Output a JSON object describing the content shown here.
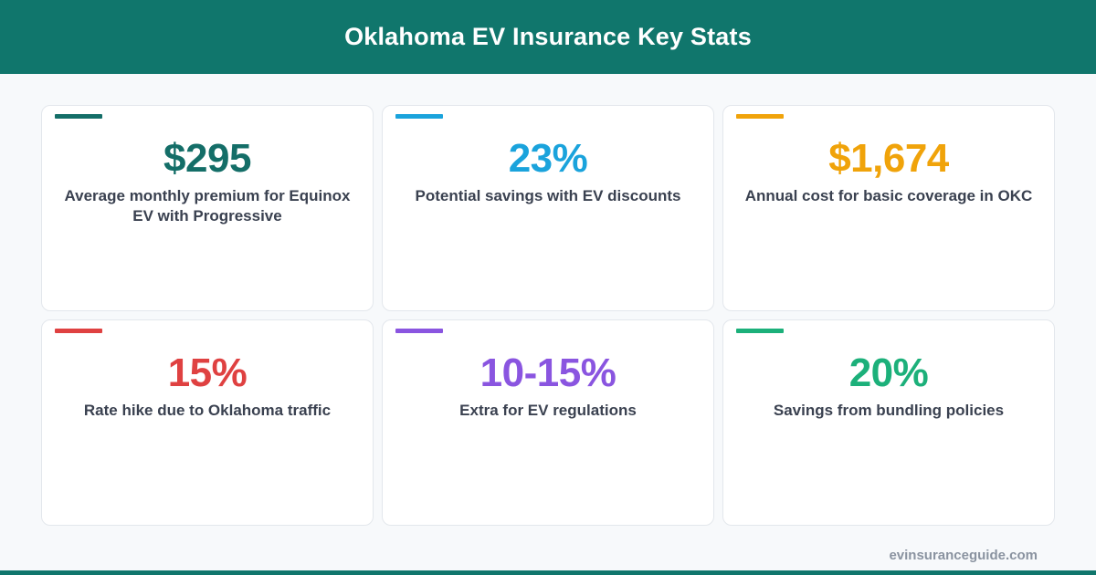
{
  "header": {
    "title": "Oklahoma EV Insurance Key Stats"
  },
  "colors": {
    "header_bg": "#10766c",
    "teal": "#146e68",
    "blue": "#1aa3dc",
    "orange": "#f0a30a",
    "red": "#df4141",
    "purple": "#8a55e0",
    "green": "#1cb07a"
  },
  "cards": [
    {
      "value": "$295",
      "description": "Average monthly premium for Equinox EV with Progressive",
      "color": "#146e68"
    },
    {
      "value": "23%",
      "description": "Potential savings with EV discounts",
      "color": "#1aa3dc"
    },
    {
      "value": "$1,674",
      "description": "Annual cost for basic coverage in OKC",
      "color": "#f0a30a"
    },
    {
      "value": "15%",
      "description": "Rate hike due to Oklahoma traffic",
      "color": "#df4141"
    },
    {
      "value": "10-15%",
      "description": "Extra for EV regulations",
      "color": "#8a55e0"
    },
    {
      "value": "20%",
      "description": "Savings from bundling policies",
      "color": "#1cb07a"
    }
  ],
  "footer": {
    "site": "evinsuranceguide.com"
  }
}
